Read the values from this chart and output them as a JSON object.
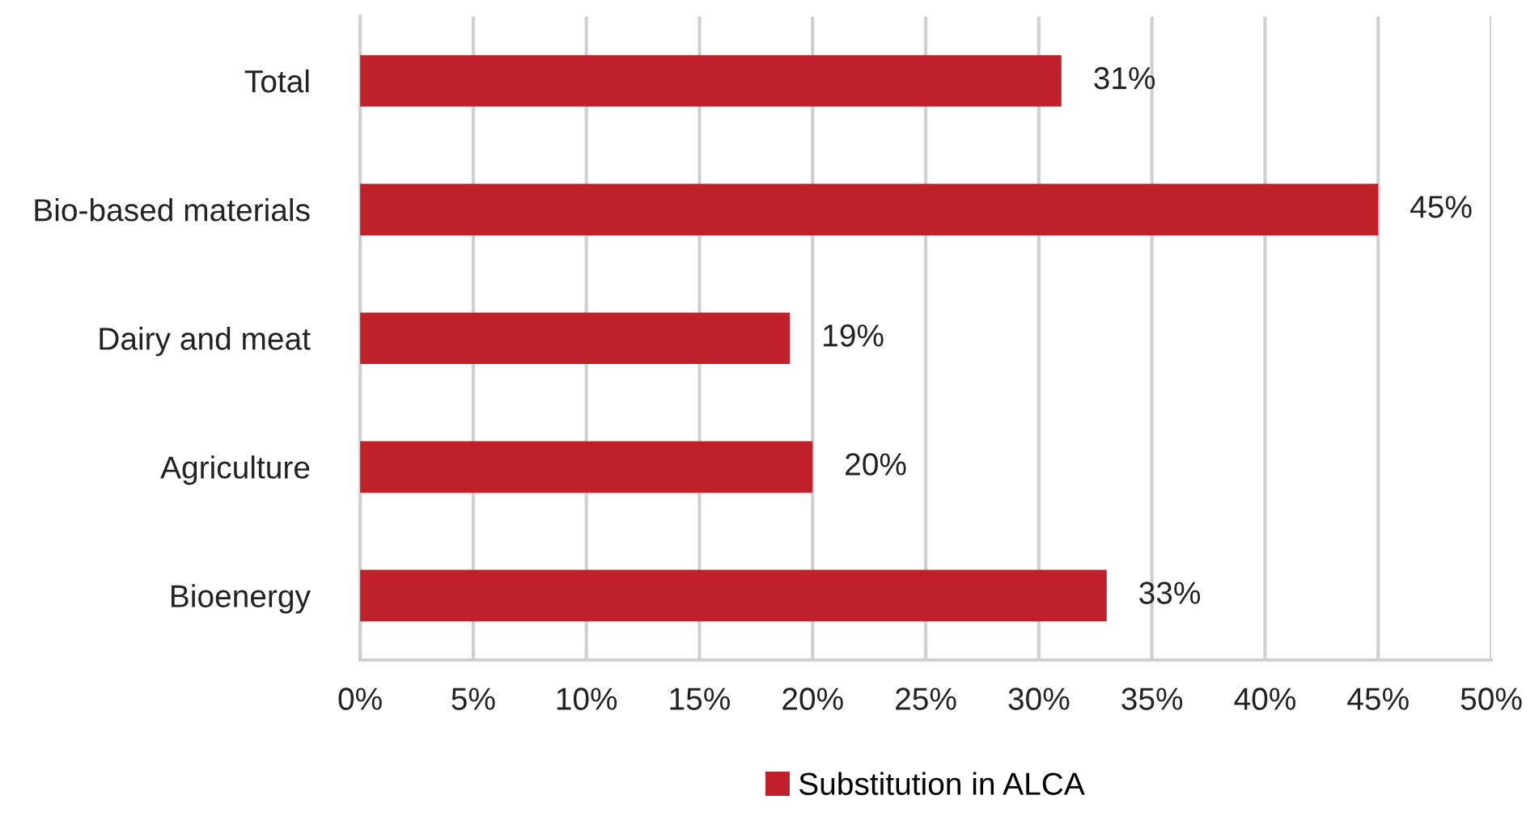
{
  "chart_data": {
    "type": "bar",
    "orientation": "horizontal",
    "categories": [
      "Total",
      "Bio-based materials",
      "Dairy and meat",
      "Agriculture",
      "Bioenergy"
    ],
    "series": [
      {
        "name": "Substitution in ALCA",
        "color": "#c0202a",
        "values": [
          31,
          45,
          19,
          20,
          33
        ]
      }
    ],
    "value_labels": [
      "31%",
      "45%",
      "19%",
      "20%",
      "33%"
    ],
    "xlim": [
      0,
      50
    ],
    "xticks": [
      {
        "value": 0,
        "label": "0%"
      },
      {
        "value": 5,
        "label": "5%"
      },
      {
        "value": 10,
        "label": "10%"
      },
      {
        "value": 15,
        "label": "15%"
      },
      {
        "value": 20,
        "label": "20%"
      },
      {
        "value": 25,
        "label": "25%"
      },
      {
        "value": 30,
        "label": "30%"
      },
      {
        "value": 35,
        "label": "35%"
      },
      {
        "value": 40,
        "label": "40%"
      },
      {
        "value": 45,
        "label": "45%"
      },
      {
        "value": 50,
        "label": "50%"
      }
    ],
    "grid": "x",
    "legend": "bottom"
  }
}
